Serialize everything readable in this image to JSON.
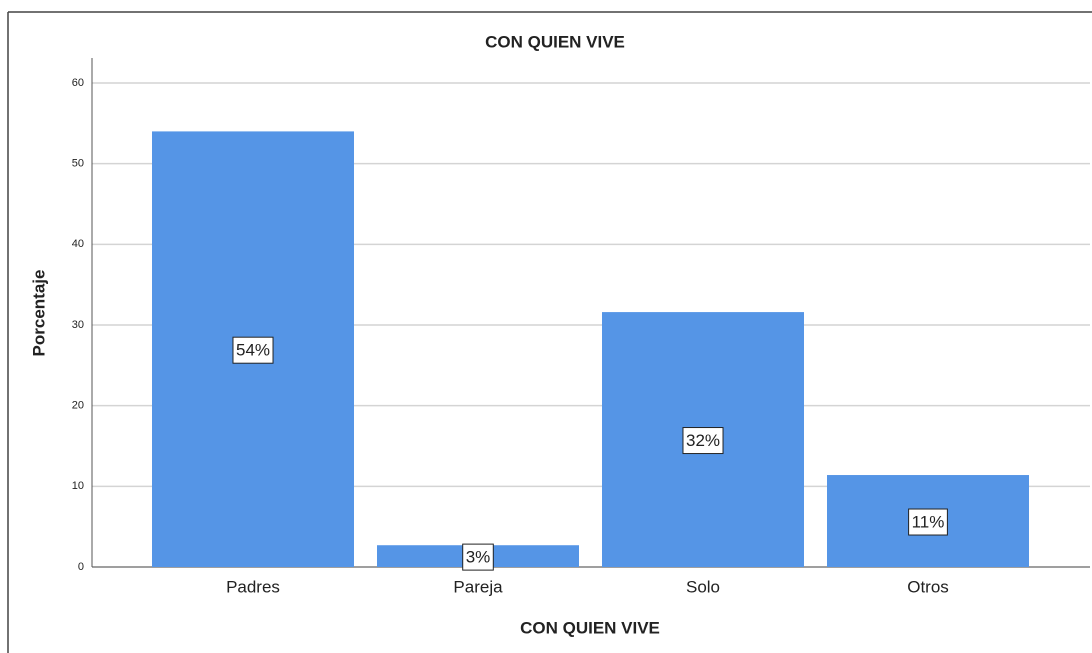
{
  "chart_data": {
    "type": "bar",
    "title": "CON QUIEN VIVE",
    "x_label": "CON QUIEN VIVE",
    "y_label": "Porcentaje",
    "categories": [
      "Padres",
      "Pareja",
      "Solo",
      "Otros"
    ],
    "values": [
      54.0,
      2.7,
      31.6,
      11.4
    ],
    "value_labels": [
      "54%",
      "3%",
      "32%",
      "11%"
    ],
    "color": "#5595e6",
    "ylim": [
      0,
      60
    ],
    "yticks": [
      0,
      10,
      20,
      30,
      40,
      50,
      60
    ],
    "grid": true
  }
}
